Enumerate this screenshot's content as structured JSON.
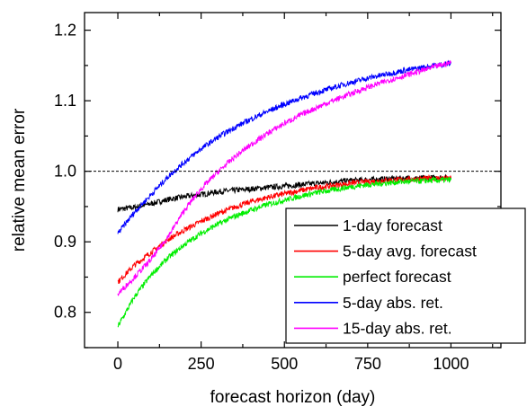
{
  "chart_data": {
    "type": "line",
    "title": "",
    "xlabel": "forecast horizon (day)",
    "ylabel": "relative mean error",
    "xlim": [
      -100,
      1150
    ],
    "ylim": [
      0.75,
      1.225
    ],
    "x_ticks": [
      0,
      250,
      500,
      750,
      1000
    ],
    "x_tick_labels": [
      "0",
      "250",
      "500",
      "750",
      "1000"
    ],
    "y_ticks": [
      0.8,
      0.9,
      1.0,
      1.1,
      1.2
    ],
    "y_tick_labels": [
      "0.8",
      "0.9",
      "1.0",
      "1.1",
      "1.2"
    ],
    "reference_line": {
      "y": 1.0,
      "style": "dashed"
    },
    "grid": false,
    "legend_position": "bottom-right",
    "series": [
      {
        "name": "1-day forecast",
        "color": "#000000",
        "x": [
          0,
          50,
          100,
          150,
          200,
          250,
          300,
          350,
          400,
          450,
          500,
          550,
          600,
          650,
          700,
          750,
          800,
          850,
          900,
          950,
          1000
        ],
        "values": [
          0.946,
          0.949,
          0.954,
          0.96,
          0.964,
          0.967,
          0.971,
          0.973,
          0.975,
          0.977,
          0.979,
          0.981,
          0.983,
          0.985,
          0.987,
          0.988,
          0.989,
          0.99,
          0.99,
          0.991,
          0.991
        ]
      },
      {
        "name": "5-day avg. forecast",
        "color": "#ff0000",
        "x": [
          0,
          50,
          100,
          150,
          200,
          250,
          300,
          350,
          400,
          450,
          500,
          550,
          600,
          650,
          700,
          750,
          800,
          850,
          900,
          950,
          1000
        ],
        "values": [
          0.843,
          0.867,
          0.885,
          0.903,
          0.917,
          0.929,
          0.94,
          0.949,
          0.957,
          0.963,
          0.968,
          0.973,
          0.977,
          0.98,
          0.983,
          0.985,
          0.987,
          0.988,
          0.989,
          0.99,
          0.99
        ]
      },
      {
        "name": "perfect forecast",
        "color": "#00ee00",
        "x": [
          0,
          50,
          100,
          150,
          200,
          250,
          300,
          350,
          400,
          450,
          500,
          550,
          600,
          650,
          700,
          750,
          800,
          850,
          900,
          950,
          1000
        ],
        "values": [
          0.78,
          0.822,
          0.853,
          0.877,
          0.896,
          0.912,
          0.925,
          0.936,
          0.945,
          0.953,
          0.959,
          0.965,
          0.97,
          0.974,
          0.978,
          0.981,
          0.983,
          0.985,
          0.986,
          0.987,
          0.988
        ]
      },
      {
        "name": "5-day abs. ret.",
        "color": "#0000ff",
        "x": [
          0,
          50,
          100,
          150,
          200,
          250,
          300,
          350,
          400,
          450,
          500,
          550,
          600,
          650,
          700,
          750,
          800,
          850,
          900,
          950,
          1000
        ],
        "values": [
          0.912,
          0.942,
          0.967,
          0.992,
          1.013,
          1.032,
          1.048,
          1.062,
          1.074,
          1.085,
          1.095,
          1.104,
          1.112,
          1.119,
          1.126,
          1.132,
          1.137,
          1.142,
          1.146,
          1.15,
          1.153
        ]
      },
      {
        "name": "15-day abs. ret.",
        "color": "#ff00ff",
        "x": [
          0,
          50,
          100,
          150,
          200,
          250,
          300,
          350,
          400,
          450,
          500,
          550,
          600,
          650,
          700,
          750,
          800,
          850,
          900,
          950,
          1000
        ],
        "values": [
          0.826,
          0.85,
          0.875,
          0.907,
          0.945,
          0.975,
          0.999,
          1.02,
          1.038,
          1.054,
          1.068,
          1.08,
          1.091,
          1.101,
          1.11,
          1.119,
          1.127,
          1.134,
          1.141,
          1.148,
          1.154
        ]
      }
    ]
  }
}
